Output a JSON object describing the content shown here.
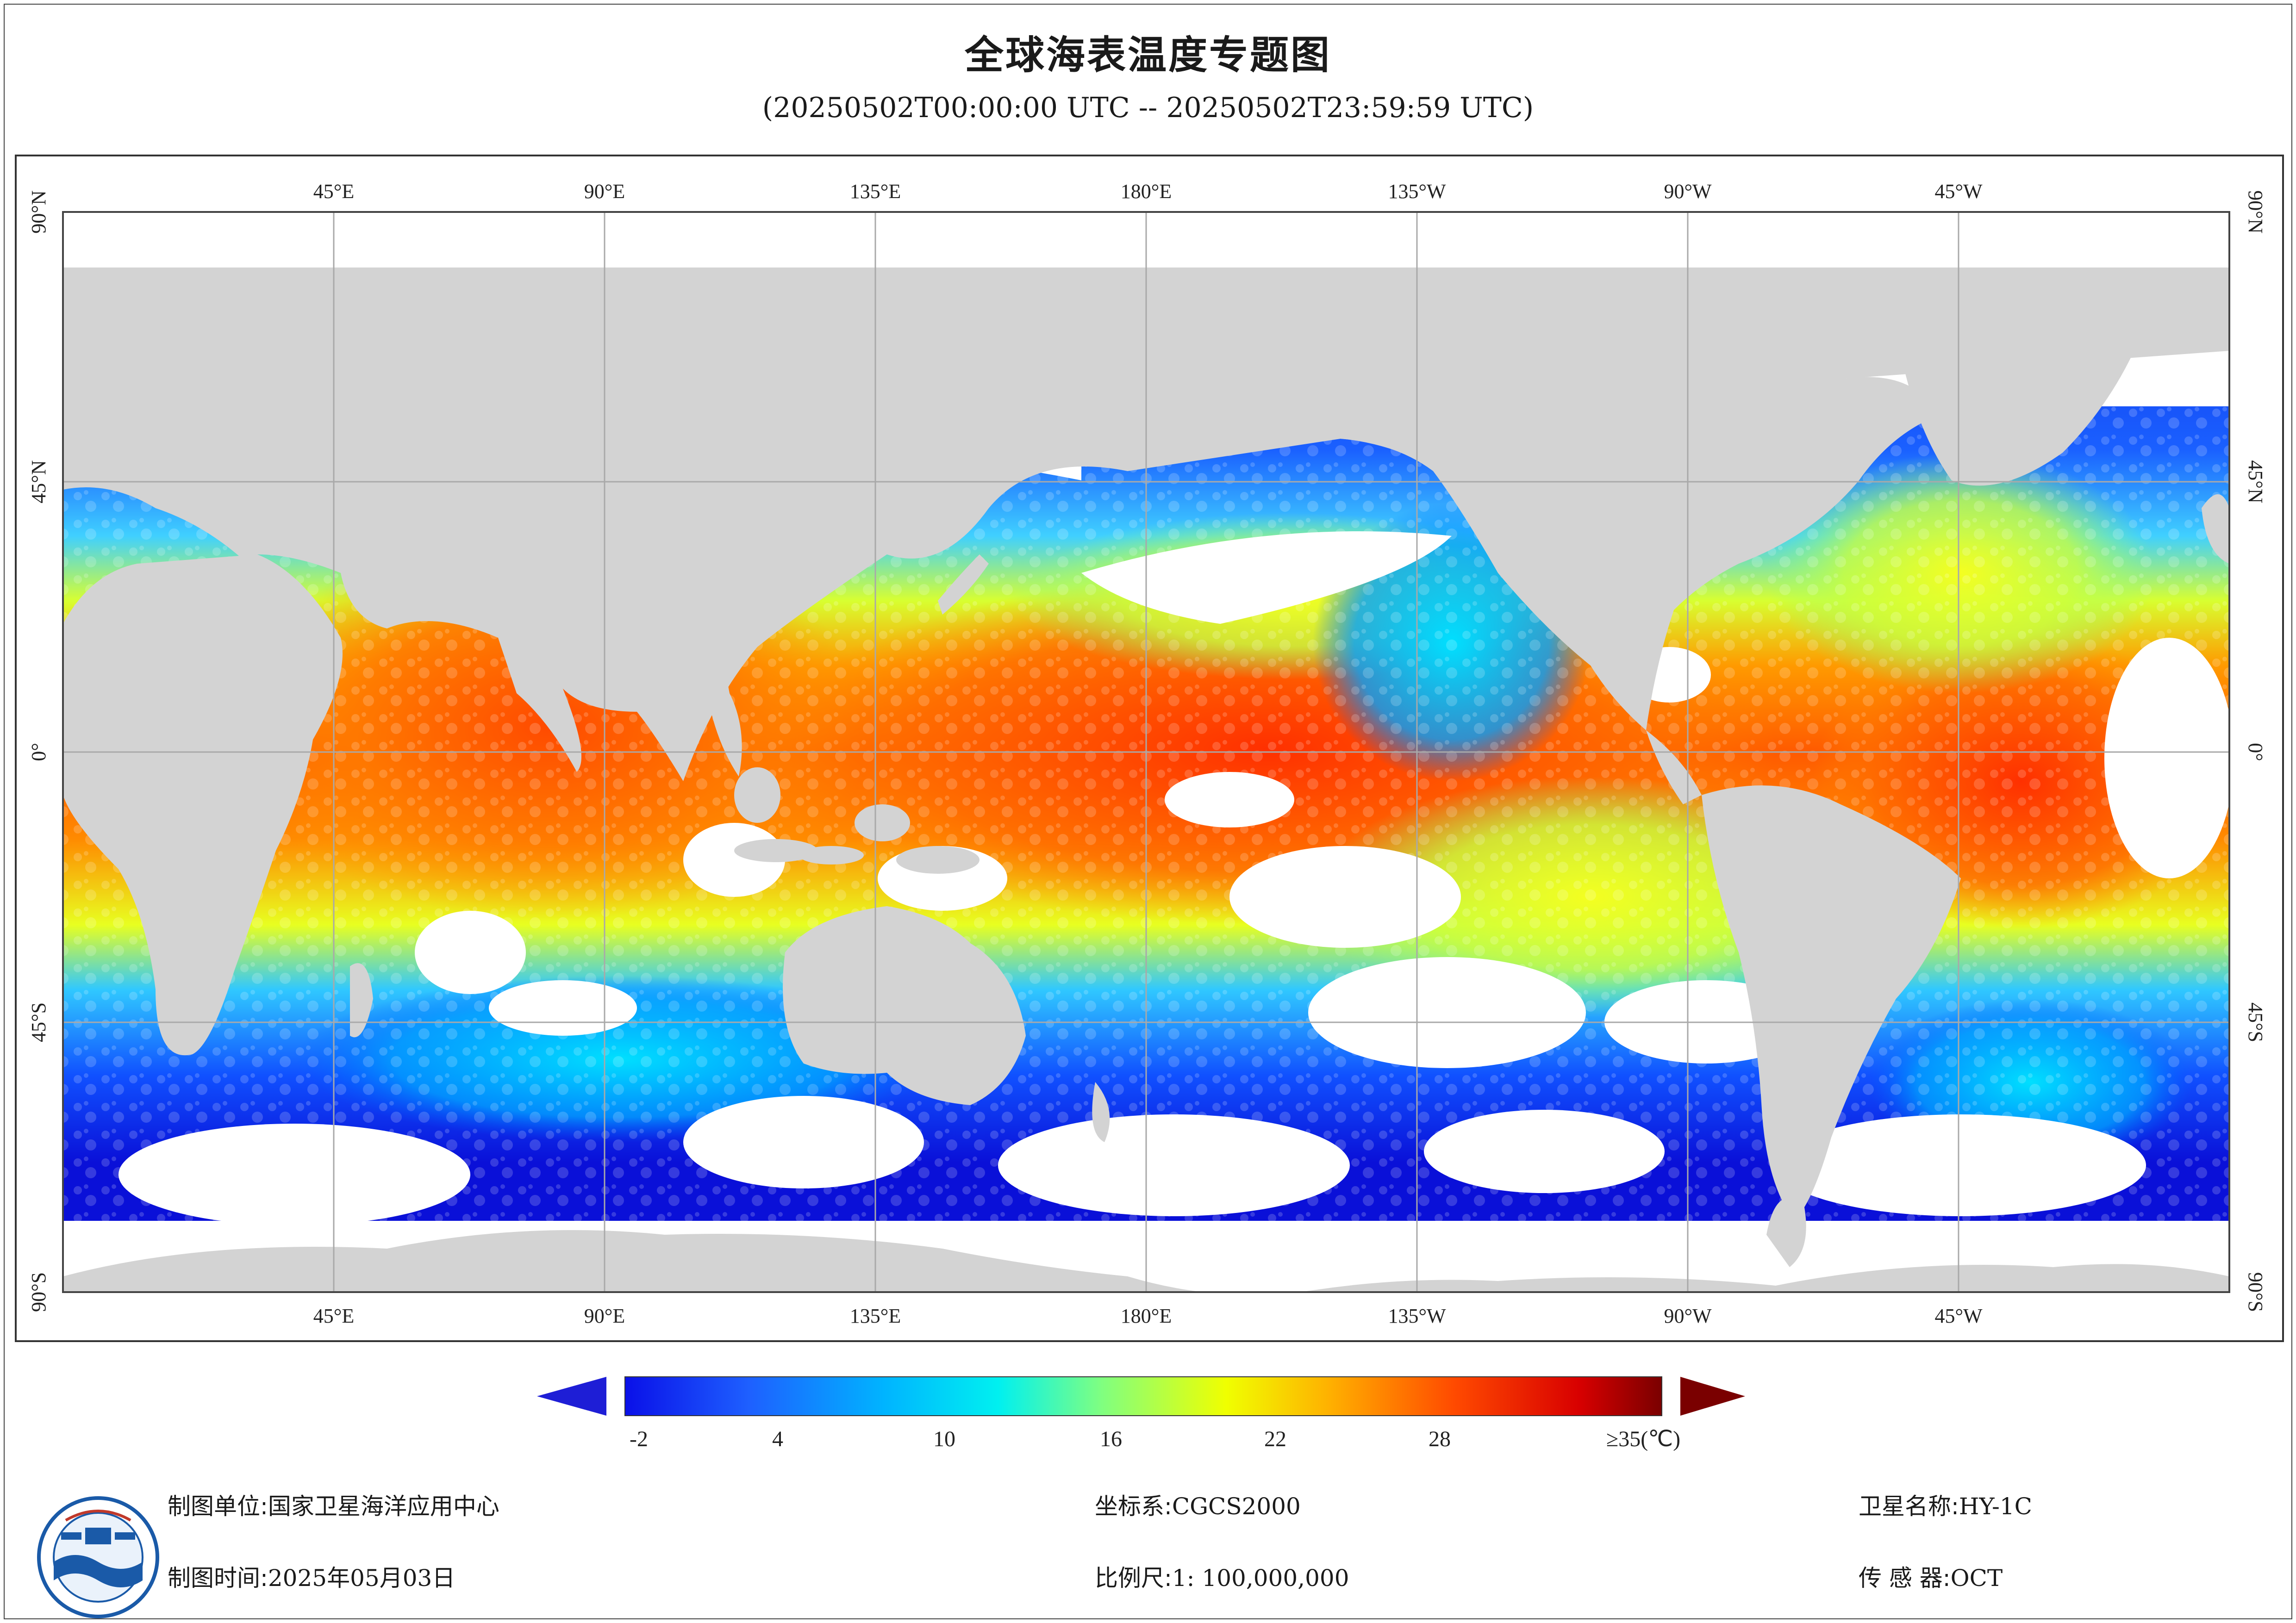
{
  "title": "全球海表温度专题图",
  "subtitle": "(20250502T00:00:00 UTC -- 20250502T23:59:59 UTC)",
  "map": {
    "projection": "equirectangular",
    "lon_labels": [
      "45°E",
      "90°E",
      "135°E",
      "180°E",
      "135°W",
      "90°W",
      "45°W"
    ],
    "lat_labels": [
      "90°N",
      "45°N",
      "0°",
      "45°S",
      "90°S"
    ],
    "land_color": "#d3d3d3",
    "no_data_color": "#ffffff",
    "grid_color": "#a9a9a9"
  },
  "colorbar": {
    "labels": [
      "-2",
      "4",
      "10",
      "16",
      "22",
      "28",
      "≥35(℃)"
    ],
    "min": -2,
    "max": 35,
    "unit": "℃",
    "low_arrow_color": "#1e1ed6",
    "high_arrow_color": "#7a0000"
  },
  "footer": {
    "org_label": "制图单位:",
    "org_value": "国家卫星海洋应用中心",
    "date_label": "制图时间:",
    "date_value": "2025年05月03日",
    "crs_label": "坐标系:",
    "crs_value": "CGCS2000",
    "scale_label": "比例尺:",
    "scale_value": "1: 100,000,000",
    "satellite_label": "卫星名称:",
    "satellite_value": "HY-1C",
    "sensor_label": "传 感 器:",
    "sensor_value": "OCT"
  },
  "logo": {
    "icon": "nsoas-logo-icon",
    "color": "#1a5aa8"
  }
}
